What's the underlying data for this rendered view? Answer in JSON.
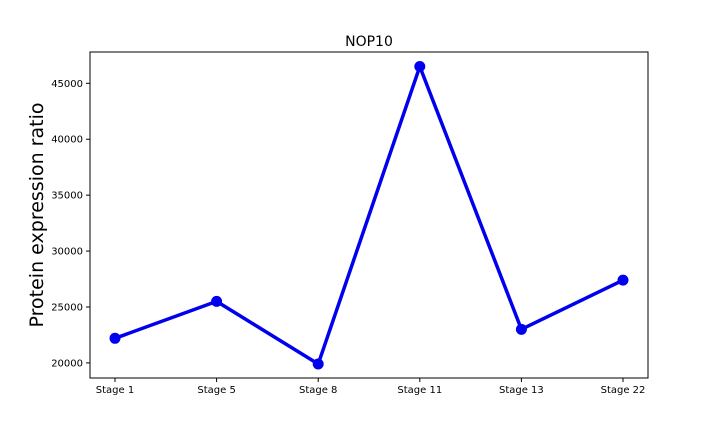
{
  "chart_data": {
    "type": "line",
    "title": "NOP10",
    "xlabel": "",
    "ylabel": "Protein expression ratio",
    "categories": [
      "Stage 1",
      "Stage 5",
      "Stage 8",
      "Stage 11",
      "Stage 13",
      "Stage 22"
    ],
    "series": [
      {
        "values": [
          22200,
          25500,
          19900,
          46500,
          23000,
          27400
        ],
        "color": "#0000ee"
      }
    ],
    "ylim": [
      18650,
      47800
    ],
    "yticks": [
      20000,
      25000,
      30000,
      35000,
      40000,
      45000
    ],
    "grid": false,
    "legend": "none",
    "marker": "circle"
  }
}
